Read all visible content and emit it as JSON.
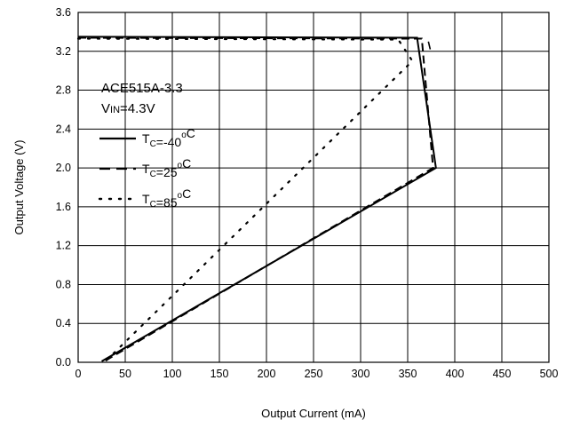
{
  "chart_data": {
    "type": "line",
    "xlabel": "Output Current (mA)",
    "ylabel": "Output Voltage (V)",
    "xlim": [
      0,
      500
    ],
    "ylim": [
      0,
      3.6
    ],
    "xticks": [
      0,
      50,
      100,
      150,
      200,
      250,
      300,
      350,
      400,
      450,
      500
    ],
    "yticks": [
      0.0,
      0.4,
      0.8,
      1.2,
      1.6,
      2.0,
      2.4,
      2.8,
      3.2,
      3.6
    ],
    "xtick_labels": [
      "0",
      "50",
      "100",
      "150",
      "200",
      "250",
      "300",
      "350",
      "400",
      "450",
      "500"
    ],
    "ytick_labels": [
      "0.0",
      "0.4",
      "0.8",
      "1.2",
      "1.6",
      "2.0",
      "2.4",
      "2.8",
      "3.2",
      "3.6"
    ],
    "grid": true,
    "annotation": {
      "part": "ACE515A-3.3",
      "vin_main": "V",
      "vin_sub": "IN",
      "vin_value": "=4.3V"
    },
    "legend_placement": "left",
    "series": [
      {
        "name_main": "T",
        "name_sub": "C",
        "name_value": "=-40",
        "name_unit": "C",
        "name_degree": "o",
        "style": "solid",
        "color": "#000000",
        "points": [
          [
            0,
            3.35
          ],
          [
            360,
            3.34
          ],
          [
            380,
            2.0
          ],
          [
            25,
            0.01
          ]
        ]
      },
      {
        "name_main": "T",
        "name_sub": "C",
        "name_value": "=25",
        "name_unit": "C",
        "name_degree": "o",
        "style": "dashed",
        "color": "#000000",
        "points": [
          [
            0,
            3.34
          ],
          [
            365,
            3.33
          ],
          [
            377,
            2.0
          ],
          [
            26,
            0.0
          ]
        ]
      },
      {
        "name_main": "T",
        "name_sub": "C",
        "name_value": "=85",
        "name_unit": "C",
        "name_degree": "o",
        "style": "dotted",
        "color": "#000000",
        "points": [
          [
            0,
            3.33
          ],
          [
            340,
            3.32
          ],
          [
            355,
            3.1
          ],
          [
            30,
            0.02
          ]
        ]
      }
    ],
    "extra_marks": [
      {
        "style": "solid",
        "points": [
          [
            372,
            3.3
          ],
          [
            374,
            3.22
          ]
        ]
      }
    ]
  }
}
